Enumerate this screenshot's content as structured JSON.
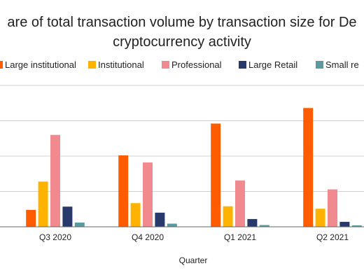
{
  "chart_data": {
    "type": "bar",
    "title": "are of total transaction volume by transaction size for De",
    "subtitle": "cryptocurrency activity",
    "xlabel": "Quarter",
    "ylabel": "",
    "categories": [
      "Q3 2020",
      "Q4 2020",
      "Q1 2021",
      "Q2 2021"
    ],
    "ylim": [
      0,
      40
    ],
    "grid": true,
    "legend_position": "top",
    "series": [
      {
        "name": "Large institutional",
        "color": "#ff5c00",
        "values": [
          4.8,
          20.2,
          29.2,
          33.6
        ]
      },
      {
        "name": "Institutional",
        "color": "#ffb300",
        "values": [
          12.8,
          6.7,
          5.8,
          5.1
        ]
      },
      {
        "name": "Professional",
        "color": "#f08a8f",
        "values": [
          26.0,
          18.2,
          13.1,
          10.6
        ]
      },
      {
        "name": "Large Retail",
        "color": "#283a6b",
        "values": [
          5.7,
          4.0,
          2.2,
          1.4
        ]
      },
      {
        "name": "Small re",
        "color": "#5b9aa0",
        "values": [
          1.2,
          0.9,
          0.5,
          0.4
        ]
      }
    ]
  }
}
